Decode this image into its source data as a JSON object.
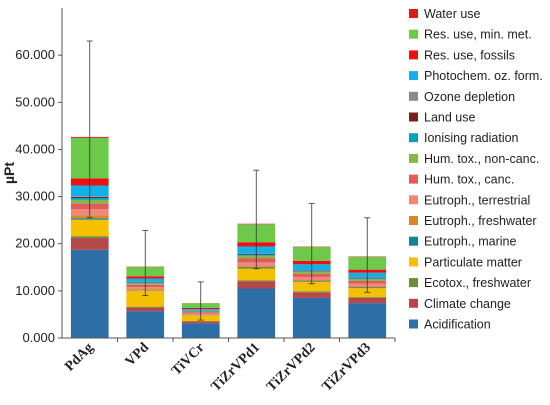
{
  "chart_data": {
    "type": "bar",
    "stacked": true,
    "ylabel": "µPt",
    "ylim": [
      0,
      70000
    ],
    "yticks": [
      "0.000",
      "10.000",
      "20.000",
      "30.000",
      "40.000",
      "50.000",
      "60.000"
    ],
    "ytick_values": [
      0,
      10000,
      20000,
      30000,
      40000,
      50000,
      60000
    ],
    "categories": [
      "PdAg",
      "VPd",
      "TiVCr",
      "TiZrVPd1",
      "TiZrVPd2",
      "TiZrVPd3"
    ],
    "legend_position": "right",
    "grid": false,
    "series": [
      {
        "name": "Acidification",
        "color": "#2e6ea6",
        "values": [
          18700,
          5700,
          3100,
          10500,
          8500,
          7400
        ]
      },
      {
        "name": "Climate change",
        "color": "#b5484a",
        "values": [
          2500,
          800,
          400,
          1500,
          1200,
          1100
        ]
      },
      {
        "name": "Ecotox., freshwater",
        "color": "#6a8e3a",
        "values": [
          400,
          150,
          80,
          250,
          200,
          180
        ]
      },
      {
        "name": "Particulate matter",
        "color": "#f5c000",
        "values": [
          3500,
          3400,
          1200,
          2500,
          2000,
          1900
        ]
      },
      {
        "name": "Eutroph., marine",
        "color": "#12848f",
        "values": [
          300,
          100,
          50,
          200,
          150,
          130
        ]
      },
      {
        "name": "Eutroph., freshwater",
        "color": "#d6892c",
        "values": [
          600,
          150,
          80,
          300,
          250,
          200
        ]
      },
      {
        "name": "Eutroph., terrestrial",
        "color": "#f08878",
        "values": [
          1300,
          500,
          250,
          800,
          650,
          600
        ]
      },
      {
        "name": "Hum. tox., canc.",
        "color": "#e05c5c",
        "values": [
          1200,
          500,
          300,
          900,
          700,
          650
        ]
      },
      {
        "name": "Hum. tox., non-canc.",
        "color": "#82b84a",
        "values": [
          800,
          300,
          150,
          500,
          400,
          350
        ]
      },
      {
        "name": "Ionising radiation",
        "color": "#00a0b8",
        "values": [
          400,
          150,
          80,
          250,
          200,
          180
        ]
      },
      {
        "name": "Land use",
        "color": "#7a1f1f",
        "values": [
          250,
          100,
          50,
          150,
          120,
          110
        ]
      },
      {
        "name": "Ozone depletion",
        "color": "#8a8a8a",
        "values": [
          100,
          50,
          30,
          70,
          60,
          50
        ]
      },
      {
        "name": "Photochem. oz. form.",
        "color": "#10b0e8",
        "values": [
          2300,
          700,
          350,
          1500,
          1200,
          1000
        ]
      },
      {
        "name": "Res. use, fossils",
        "color": "#ee1010",
        "values": [
          1500,
          500,
          250,
          900,
          750,
          650
        ]
      },
      {
        "name": "Res. use, min. met.",
        "color": "#6cc94a",
        "values": [
          8600,
          2000,
          1000,
          3800,
          2900,
          2700
        ]
      },
      {
        "name": "Water use",
        "color": "#e01818",
        "values": [
          200,
          60,
          30,
          120,
          100,
          90
        ]
      }
    ],
    "error_bars": [
      {
        "category": "PdAg",
        "low": 25500,
        "high": 63000
      },
      {
        "category": "VPd",
        "low": 9000,
        "high": 22800
      },
      {
        "category": "TiVCr",
        "low": 3800,
        "high": 11900
      },
      {
        "category": "TiZrVPd1",
        "low": 14700,
        "high": 35600
      },
      {
        "category": "TiZrVPd2",
        "low": 11500,
        "high": 28500
      },
      {
        "category": "TiZrVPd3",
        "low": 9700,
        "high": 25500
      }
    ]
  }
}
